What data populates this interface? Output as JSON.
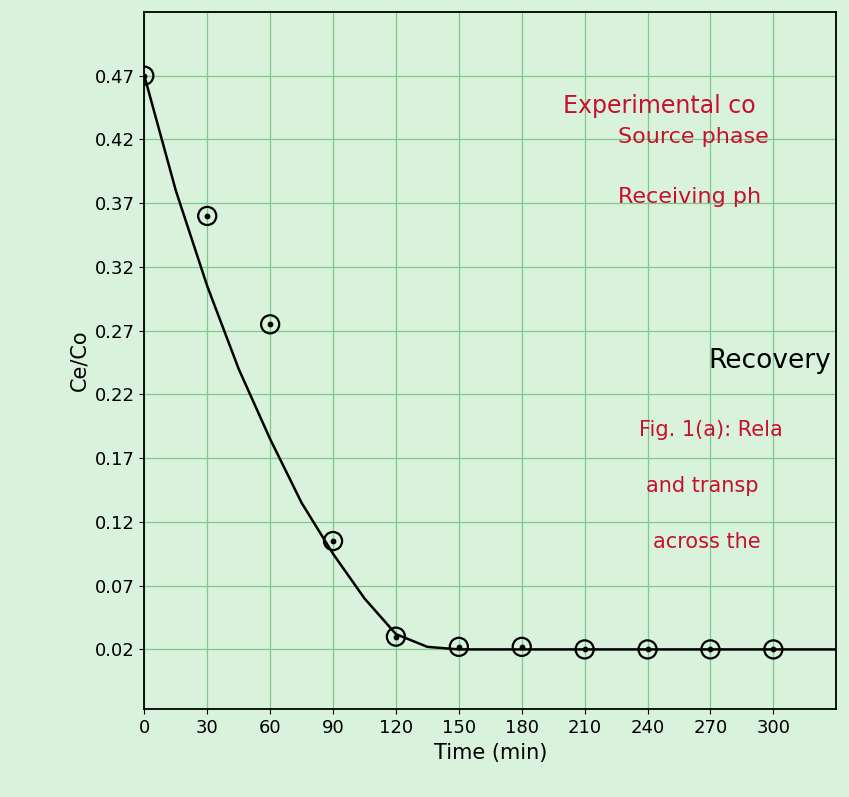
{
  "chart_data": {
    "type": "line",
    "x_label": "Time (min)",
    "y_label": "Ce/Co",
    "xlim": [
      0,
      330
    ],
    "ylim": [
      -0.027,
      0.52
    ],
    "xticks": [
      0,
      30,
      60,
      90,
      120,
      150,
      180,
      210,
      240,
      270,
      300
    ],
    "yticks": [
      0.02,
      0.07,
      0.12,
      0.17,
      0.22,
      0.27,
      0.32,
      0.37,
      0.42,
      0.47
    ],
    "grid": true,
    "series": [
      {
        "type": "scatter",
        "color": "#000000",
        "marker": "o",
        "x": [
          0,
          30,
          60,
          90,
          120,
          150,
          180,
          210,
          240,
          270,
          300
        ],
        "values": [
          0.47,
          0.36,
          0.275,
          0.105,
          0.03,
          0.022,
          0.022,
          0.02,
          0.02,
          0.02,
          0.02
        ]
      },
      {
        "type": "line",
        "color": "#000000",
        "line_style": "solid",
        "x": [
          0,
          15,
          30,
          45,
          60,
          75,
          90,
          105,
          120,
          135,
          150,
          180,
          210,
          240,
          270,
          300,
          330
        ],
        "values": [
          0.47,
          0.38,
          0.305,
          0.24,
          0.185,
          0.135,
          0.095,
          0.06,
          0.032,
          0.022,
          0.02,
          0.02,
          0.02,
          0.02,
          0.02,
          0.02,
          0.02
        ]
      }
    ],
    "annotations": [
      {
        "text": "Experimental co",
        "color": "#c8102e"
      },
      {
        "text": "Source phase",
        "color": "#c8102e"
      },
      {
        "text": "Receiving ph",
        "color": "#c8102e"
      },
      {
        "text": "Recovery",
        "color": "#000000"
      },
      {
        "text": "Fig. 1(a): Rela",
        "color": "#c8102e"
      },
      {
        "text": "and transp",
        "color": "#c8102e"
      },
      {
        "text": "across the",
        "color": "#c8102e"
      }
    ]
  }
}
